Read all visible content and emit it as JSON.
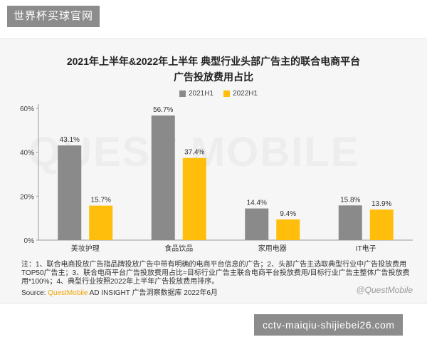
{
  "site_tag": "世界杯买球官网",
  "url_tag": "cctv-maiqiu-shijiebei26.com",
  "watermark": "QUEST MOBILE",
  "legend_colors": {
    "2021H1": "#8a8a8a",
    "2022H1": "#ffbe0b"
  },
  "chart_data": {
    "type": "bar",
    "title_line1": "2021年上半年&2022年上半年 典型行业头部广告主的联合电商平台",
    "title_line2": "广告投放费用占比",
    "categories": [
      "美妆护理",
      "食品饮品",
      "家用电器",
      "IT电子"
    ],
    "series": [
      {
        "name": "2021H1",
        "values": [
          43.1,
          56.7,
          14.4,
          15.8
        ],
        "labels": [
          "43.1%",
          "56.7%",
          "14.4%",
          "15.8%"
        ]
      },
      {
        "name": "2022H1",
        "values": [
          15.7,
          37.4,
          9.4,
          13.9
        ],
        "labels": [
          "15.7%",
          "37.4%",
          "9.4%",
          "13.9%"
        ]
      }
    ],
    "ylim": [
      0,
      60
    ],
    "yticks": [
      0,
      20,
      40,
      60
    ],
    "ytick_labels": [
      "0%",
      "20%",
      "40%",
      "60%"
    ],
    "grid": false,
    "legend_position": "top-center"
  },
  "footnote": "注：1、联合电商投放广告指品牌投放广告中带有明确的电商平台信息的广告；2、头部广告主选取典型行业中广告投放费用TOP50广告主；3、联合电商平台广告投放费用占比=目标行业广告主联合电商平台投放费用/目标行业广告主整体广告投放费用*100%；4、典型行业按照2022年上半年广告投放费用排序。",
  "source": {
    "prefix": "Source: ",
    "brand": "QuestMobile",
    "rest": " AD INSIGHT 广告洞察数据库 2022年6月"
  },
  "brand_logo": "@QuestMobile"
}
